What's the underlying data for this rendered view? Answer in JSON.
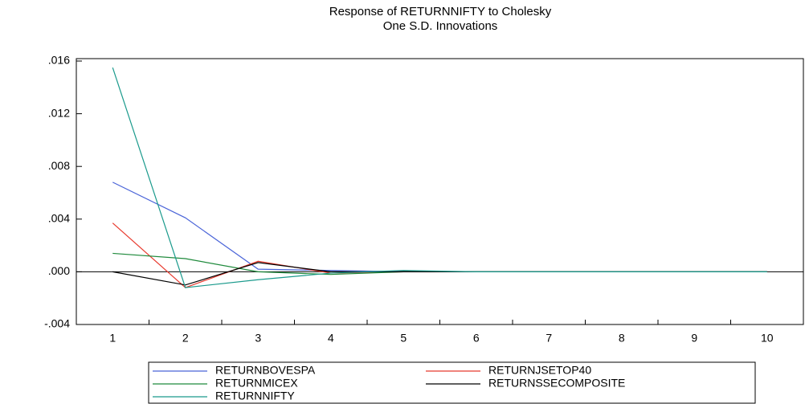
{
  "chart_data": {
    "type": "line",
    "title": "Response of RETURNNIFTY to Cholesky",
    "subtitle": "One S.D. Innovations",
    "categories": [
      "1",
      "2",
      "3",
      "4",
      "5",
      "6",
      "7",
      "8",
      "9",
      "10"
    ],
    "series": [
      {
        "name": "RETURNBOVESPA",
        "color": "#4a64d8",
        "values": [
          0.0068,
          0.0041,
          0.0002,
          0.0001,
          0.0,
          0.0,
          0.0,
          0.0,
          0.0,
          0.0
        ]
      },
      {
        "name": "RETURNJSETOP40",
        "color": "#e83a2e",
        "values": [
          0.0037,
          -0.0012,
          0.0008,
          -0.0001,
          0.0,
          0.0,
          0.0,
          0.0,
          0.0,
          0.0
        ]
      },
      {
        "name": "RETURNMICEX",
        "color": "#1f8a3c",
        "values": [
          0.0014,
          0.001,
          0.0,
          -0.0002,
          0.0,
          0.0,
          0.0,
          0.0,
          0.0,
          0.0
        ]
      },
      {
        "name": "RETURNSSECOMPOSITE",
        "color": "#000000",
        "values": [
          0.0,
          -0.001,
          0.0007,
          0.0,
          0.0,
          0.0,
          0.0,
          0.0,
          0.0,
          0.0
        ]
      },
      {
        "name": "RETURNNIFTY",
        "color": "#1a9a8c",
        "values": [
          0.0155,
          -0.0012,
          -0.0006,
          -0.0001,
          0.0001,
          0.0,
          0.0,
          0.0,
          0.0,
          0.0
        ]
      }
    ],
    "ylim": [
      -0.004,
      0.016
    ],
    "yticks": [
      {
        "value": -0.004,
        "label": "-.004"
      },
      {
        "value": 0,
        "label": ".000"
      },
      {
        "value": 0.004,
        "label": ".004"
      },
      {
        "value": 0.008,
        "label": ".008"
      },
      {
        "value": 0.012,
        "label": ".012"
      },
      {
        "value": 0.016,
        "label": ".016"
      }
    ]
  }
}
